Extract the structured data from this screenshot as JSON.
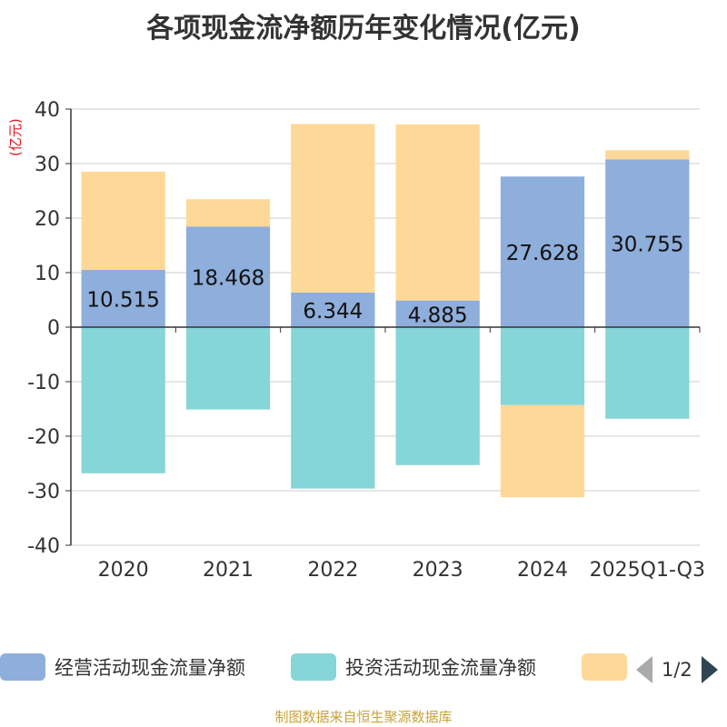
{
  "title": "各项现金流净额历年变化情况(亿元)",
  "unit_label": "(亿元)",
  "source": "制图数据来自恒生聚源数据库",
  "colors": {
    "operating": "#8eaedb",
    "investing": "#86d5d8",
    "financing": "#fed898",
    "grid": "#cccccc",
    "axis": "#333333"
  },
  "legend": {
    "items": [
      {
        "name": "经营活动现金流量净额",
        "color": "#8eaedb"
      },
      {
        "name": "投资活动现金流量净额",
        "color": "#86d5d8"
      },
      {
        "name": "",
        "color": "#fed898"
      }
    ],
    "page": "1/2"
  },
  "chart_data": {
    "type": "bar",
    "stacked": true,
    "categories": [
      "2020",
      "2021",
      "2022",
      "2023",
      "2024",
      "2025Q1-Q3"
    ],
    "ylim": [
      -40,
      40
    ],
    "yticks": [
      40,
      30,
      20,
      10,
      0,
      -10,
      -20,
      -30,
      -40
    ],
    "grid": true,
    "legend_position": "bottom",
    "series": [
      {
        "name": "经营活动现金流量净额",
        "values": [
          10.515,
          18.468,
          6.344,
          4.885,
          27.628,
          30.755
        ],
        "show_labels": true
      },
      {
        "name": "投资活动现金流量净额",
        "values": [
          -26.8,
          -15.1,
          -29.6,
          -25.3,
          -14.3,
          -16.8
        ],
        "show_labels": false
      },
      {
        "name": "",
        "values": [
          18.0,
          5.0,
          30.9,
          32.3,
          -16.9,
          1.7
        ],
        "show_labels": false
      }
    ]
  }
}
